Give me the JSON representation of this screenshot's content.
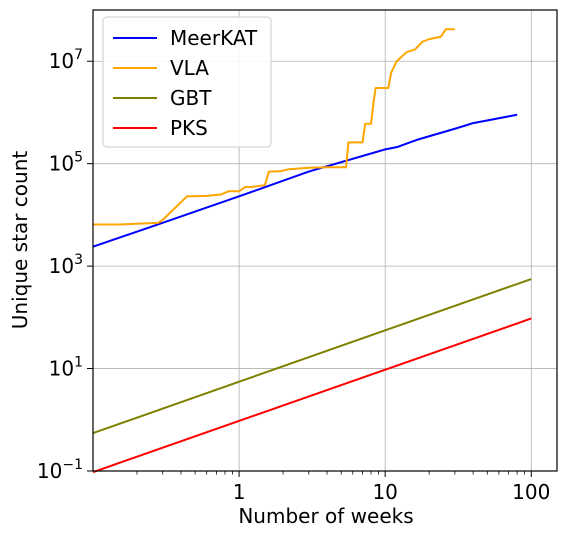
{
  "chart_data": {
    "type": "line",
    "title": "",
    "xlabel": "Number of weeks",
    "ylabel": "Unique star count",
    "xscale": "log",
    "yscale": "log",
    "xlim": [
      0.1,
      150
    ],
    "ylim": [
      0.1,
      100000000
    ],
    "grid": true,
    "legend_position": "top-left",
    "x_ticks": [
      {
        "value": 1,
        "label": "1"
      },
      {
        "value": 10,
        "label": "10"
      },
      {
        "value": 100,
        "label": "100"
      }
    ],
    "y_ticks": [
      {
        "value": 0.1,
        "base": "10",
        "exp": "−1"
      },
      {
        "value": 10,
        "base": "10",
        "exp": "1"
      },
      {
        "value": 1000,
        "base": "10",
        "exp": "3"
      },
      {
        "value": 100000,
        "base": "10",
        "exp": "5"
      },
      {
        "value": 10000000,
        "base": "10",
        "exp": "7"
      }
    ],
    "series": [
      {
        "name": "MeerKAT",
        "color": "#0000ff",
        "points": [
          [
            0.1,
            2400
          ],
          [
            0.3,
            7000
          ],
          [
            1,
            23000
          ],
          [
            3,
            70000
          ],
          [
            10,
            190000
          ],
          [
            12,
            210000
          ],
          [
            17,
            300000
          ],
          [
            30,
            480000
          ],
          [
            35,
            550000
          ],
          [
            40,
            620000
          ],
          [
            80,
            900000
          ]
        ]
      },
      {
        "name": "VLA",
        "color": "#ffa500",
        "points": [
          [
            0.1,
            6500
          ],
          [
            0.15,
            6500
          ],
          [
            0.28,
            7000
          ],
          [
            0.3,
            8000
          ],
          [
            0.44,
            23000
          ],
          [
            0.6,
            23500
          ],
          [
            0.75,
            25000
          ],
          [
            0.85,
            29000
          ],
          [
            1.0,
            29000
          ],
          [
            1.1,
            35000
          ],
          [
            1.2,
            35000
          ],
          [
            1.5,
            38000
          ],
          [
            1.6,
            70000
          ],
          [
            1.9,
            71000
          ],
          [
            2.2,
            78000
          ],
          [
            3,
            83000
          ],
          [
            4,
            85000
          ],
          [
            5.4,
            85000
          ],
          [
            5.6,
            260000
          ],
          [
            7.0,
            260000
          ],
          [
            7.3,
            600000
          ],
          [
            8.0,
            600000
          ],
          [
            8.3,
            1500000
          ],
          [
            8.6,
            3000000
          ],
          [
            9.5,
            3000000
          ],
          [
            10.5,
            3000000
          ],
          [
            11,
            6000000
          ],
          [
            12,
            10000000
          ],
          [
            14,
            15000000
          ],
          [
            16,
            17000000
          ],
          [
            18,
            24000000
          ],
          [
            20,
            27000000
          ],
          [
            24,
            30000000
          ],
          [
            26,
            42000000
          ],
          [
            30,
            42000000
          ]
        ]
      },
      {
        "name": "GBT",
        "color": "#808000",
        "points": [
          [
            0.1,
            0.55
          ],
          [
            100,
            560
          ]
        ]
      },
      {
        "name": "PKS",
        "color": "#ff0000",
        "points": [
          [
            0.1,
            0.095
          ],
          [
            100,
            95
          ]
        ]
      }
    ]
  }
}
